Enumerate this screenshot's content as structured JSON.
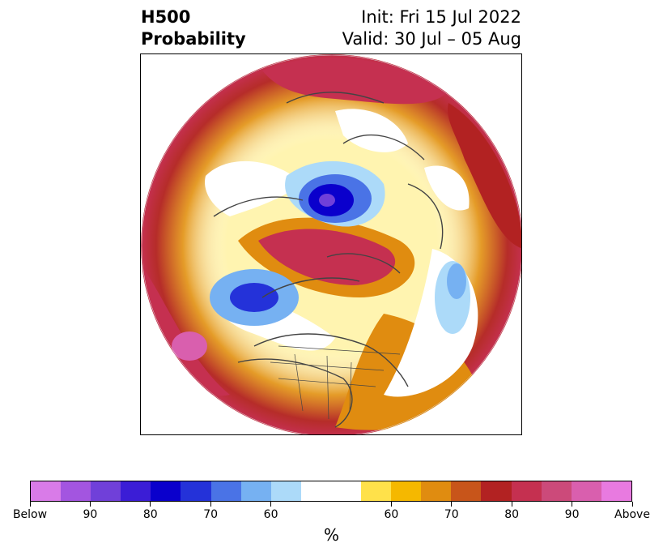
{
  "title": {
    "left_line1": "H500",
    "left_line2": "Probability",
    "right_line1": "Init: Fri 15 Jul 2022",
    "right_line2": "Valid: 30 Jul – 05 Aug"
  },
  "map": {
    "projection": "polar-stereographic-north",
    "region": "North America and Arctic"
  },
  "colorbar": {
    "label": "%",
    "colors": [
      "#d97be8",
      "#a355e0",
      "#7040d9",
      "#3b1dd6",
      "#0a00cc",
      "#2432d9",
      "#4a73e6",
      "#76b1f2",
      "#acdaf9",
      "#ffffff",
      "#ffffff",
      "#ffe14a",
      "#f5b800",
      "#e08c10",
      "#c8551a",
      "#b22222",
      "#c53050",
      "#cc4a7a",
      "#d95fae",
      "#e87ae0"
    ],
    "ticks": [
      "Below",
      "90",
      "80",
      "70",
      "60",
      "60",
      "70",
      "80",
      "90",
      "Above"
    ]
  }
}
